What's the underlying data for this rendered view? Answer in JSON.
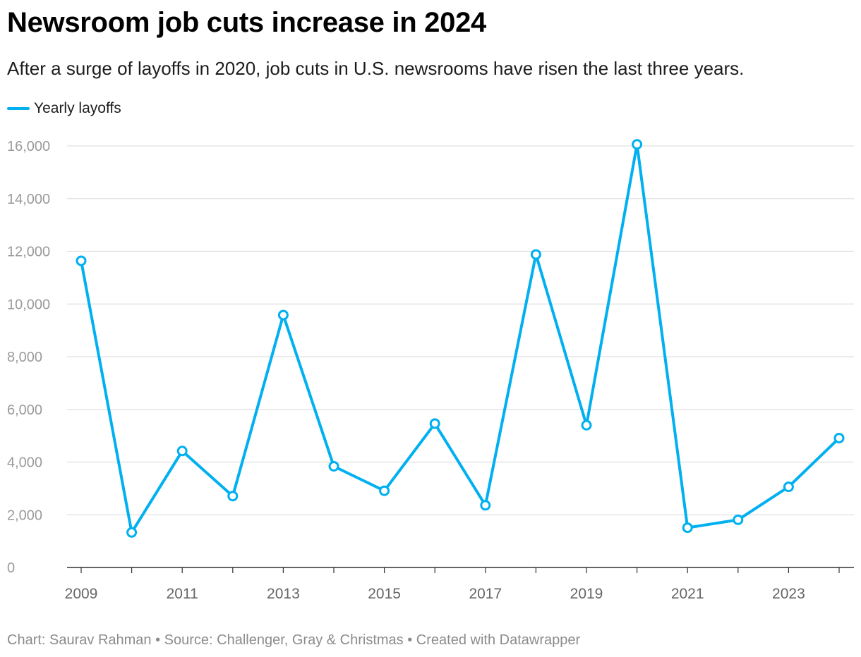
{
  "header": {
    "title": "Newsroom job cuts increase in 2024",
    "subtitle": "After a surge of layoffs in 2020, job cuts in U.S. newsrooms have risen the last three years."
  },
  "footer": {
    "text": "Chart: Saurav Rahman • Source: Challenger, Gray & Christmas • Created with Datawrapper"
  },
  "chart_data": {
    "type": "line",
    "title": "Newsroom job cuts increase in 2024",
    "subtitle": "After a surge of layoffs in 2020, job cuts in U.S. newsrooms have risen the last three years.",
    "xlabel": "",
    "ylabel": "",
    "x": [
      2009,
      2010,
      2011,
      2012,
      2013,
      2014,
      2015,
      2016,
      2017,
      2018,
      2019,
      2020,
      2021,
      2022,
      2023,
      2024
    ],
    "series": [
      {
        "name": "Yearly layoffs",
        "color": "#00b0f0",
        "values": [
          11640,
          1330,
          4420,
          2710,
          9580,
          3840,
          2910,
          5460,
          2360,
          11880,
          5400,
          16060,
          1510,
          1810,
          3060,
          4910
        ]
      }
    ],
    "xlim": [
      2009,
      2024
    ],
    "ylim": [
      0,
      16000
    ],
    "yticks": [
      0,
      2000,
      4000,
      6000,
      8000,
      10000,
      12000,
      14000,
      16000
    ],
    "ytick_labels": [
      "0",
      "2,000",
      "4,000",
      "6,000",
      "8,000",
      "10,000",
      "12,000",
      "14,000",
      "16,000"
    ],
    "xticks": [
      2009,
      2011,
      2013,
      2015,
      2017,
      2019,
      2021,
      2023
    ],
    "xtick_labels": [
      "2009",
      "2011",
      "2013",
      "2015",
      "2017",
      "2019",
      "2021",
      "2023"
    ],
    "grid": true,
    "legend_position": "top-left"
  }
}
